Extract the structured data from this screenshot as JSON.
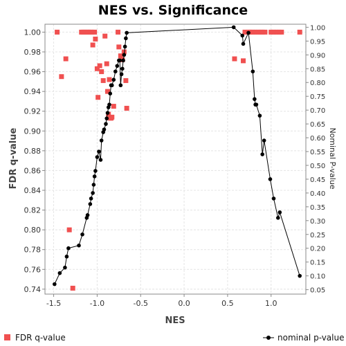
{
  "chart_data": {
    "type": "scatter",
    "title": "NES vs. Significance",
    "xlabel": "NES",
    "ylabel": "FDR q-value",
    "y2label": "Nominal P-value",
    "xlim": [
      -1.6,
      1.4
    ],
    "ylim": [
      0.735,
      1.008
    ],
    "y2lim": [
      0.034,
      1.011
    ],
    "x_ticks": [
      "-1.5",
      "-1.0",
      "-0.5",
      "0.0",
      "0.5",
      "1.0"
    ],
    "y_ticks": [
      "0.74",
      "0.76",
      "0.78",
      "0.80",
      "0.82",
      "0.84",
      "0.86",
      "0.88",
      "0.90",
      "0.92",
      "0.94",
      "0.96",
      "0.98",
      "1.00"
    ],
    "y2_ticks": [
      "0.05",
      "0.10",
      "0.15",
      "0.20",
      "0.25",
      "0.30",
      "0.35",
      "0.40",
      "0.45",
      "0.50",
      "0.55",
      "0.60",
      "0.65",
      "0.70",
      "0.75",
      "0.80",
      "0.85",
      "0.90",
      "0.95",
      "1.00"
    ],
    "grid": true,
    "legend_position": "bottom",
    "colors": {
      "fdr": "#f05050",
      "nominal": "#000000",
      "grid": "#e4e4e4",
      "axis": "#888888"
    },
    "series": [
      {
        "name": "FDR q-value",
        "axis": "left",
        "marker": "square",
        "x": [
          -1.46,
          -1.41,
          -1.36,
          -1.32,
          -1.28,
          -1.18,
          -1.16,
          -1.14,
          -1.12,
          -1.1,
          -1.08,
          -1.06,
          -1.05,
          -1.03,
          -1.02,
          -1.0,
          -0.99,
          -0.97,
          -0.95,
          -0.93,
          -0.91,
          -0.89,
          -0.88,
          -0.87,
          -0.86,
          -0.85,
          -0.84,
          -0.83,
          -0.81,
          -0.76,
          -0.75,
          -0.73,
          -0.71,
          -0.69,
          -0.67,
          -0.66,
          0.58,
          0.68,
          0.7,
          0.74,
          0.76,
          0.79,
          0.82,
          0.85,
          0.88,
          0.9,
          0.93,
          1.0,
          1.03,
          1.06,
          1.09,
          1.12,
          1.33
        ],
        "y": [
          1.0,
          0.955,
          0.973,
          0.8,
          0.741,
          1.0,
          1.0,
          1.0,
          1.0,
          1.0,
          1.0,
          1.0,
          0.987,
          1.0,
          0.993,
          0.963,
          0.934,
          0.966,
          0.96,
          0.951,
          0.996,
          0.968,
          0.94,
          0.917,
          0.952,
          0.913,
          0.913,
          0.914,
          0.925,
          1.0,
          0.985,
          0.976,
          0.972,
          0.98,
          0.951,
          0.923,
          0.973,
          0.971,
          1.0,
          1.0,
          1.0,
          1.0,
          1.0,
          1.0,
          1.0,
          1.0,
          1.0,
          1.0,
          1.0,
          1.0,
          1.0,
          1.0,
          1.0
        ]
      },
      {
        "name": "nominal p-value",
        "axis": "right",
        "marker": "circle",
        "x": [
          -1.49,
          -1.43,
          -1.37,
          -1.35,
          -1.33,
          -1.21,
          -1.17,
          -1.12,
          -1.11,
          -1.08,
          -1.07,
          -1.05,
          -1.04,
          -1.03,
          -1.02,
          -1.0,
          -0.98,
          -0.96,
          -0.95,
          -0.93,
          -0.92,
          -0.9,
          -0.89,
          -0.88,
          -0.87,
          -0.86,
          -0.85,
          -0.84,
          -0.83,
          -0.81,
          -0.79,
          -0.77,
          -0.75,
          -0.74,
          -0.73,
          -0.72,
          -0.71,
          -0.7,
          -0.69,
          -0.68,
          -0.67,
          -0.66,
          0.57,
          0.67,
          0.68,
          0.74,
          0.79,
          0.81,
          0.82,
          0.83,
          0.87,
          0.9,
          0.92,
          0.99,
          1.03,
          1.08,
          1.1,
          1.33
        ],
        "y": [
          0.07,
          0.11,
          0.13,
          0.17,
          0.2,
          0.21,
          0.25,
          0.31,
          0.32,
          0.36,
          0.38,
          0.4,
          0.43,
          0.46,
          0.48,
          0.53,
          0.55,
          0.52,
          0.59,
          0.62,
          0.63,
          0.65,
          0.67,
          0.69,
          0.71,
          0.72,
          0.76,
          0.79,
          0.79,
          0.81,
          0.84,
          0.86,
          0.88,
          0.88,
          0.79,
          0.83,
          0.85,
          0.88,
          0.9,
          0.93,
          0.96,
          0.98,
          1.0,
          0.97,
          0.94,
          0.98,
          0.84,
          0.74,
          0.72,
          0.72,
          0.68,
          0.54,
          0.59,
          0.45,
          0.38,
          0.31,
          0.33,
          0.1
        ]
      }
    ]
  }
}
